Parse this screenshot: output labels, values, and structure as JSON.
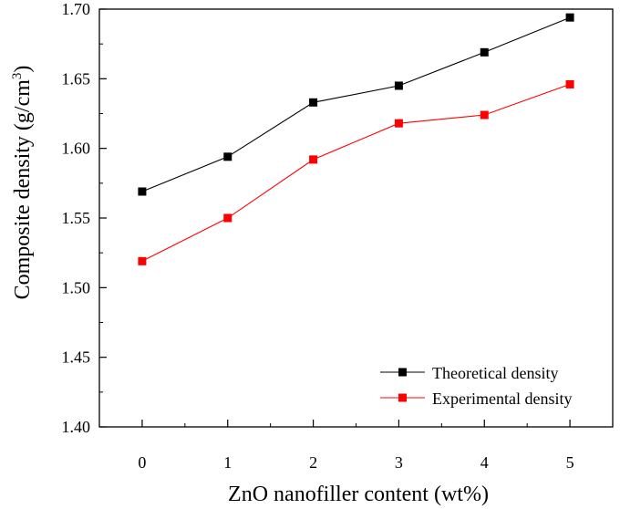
{
  "chart_data": {
    "type": "line",
    "title": "",
    "xlabel": "ZnO nanofiller content (wt%)",
    "ylabel_main": "Composite density (g/cm",
    "ylabel_sup": "3",
    "ylabel_close": ")",
    "x": [
      0,
      1,
      2,
      3,
      4,
      5
    ],
    "x_tick_labels": [
      "0",
      "1",
      "2",
      "3",
      "4",
      "5"
    ],
    "xlim": [
      -0.5,
      5.5
    ],
    "ylim": [
      1.4,
      1.7
    ],
    "y_ticks": [
      1.4,
      1.45,
      1.5,
      1.55,
      1.6,
      1.65,
      1.7
    ],
    "y_tick_labels": [
      "1.40",
      "1.45",
      "1.50",
      "1.55",
      "1.60",
      "1.65",
      "1.70"
    ],
    "grid": false,
    "legend_position": "bottom-right",
    "series": [
      {
        "name": "Theoretical density",
        "color": "#000000",
        "values": [
          1.569,
          1.594,
          1.633,
          1.645,
          1.669,
          1.694
        ]
      },
      {
        "name": "Experimental density",
        "color": "#ff0000",
        "values": [
          1.519,
          1.55,
          1.592,
          1.618,
          1.624,
          1.646
        ]
      }
    ]
  }
}
